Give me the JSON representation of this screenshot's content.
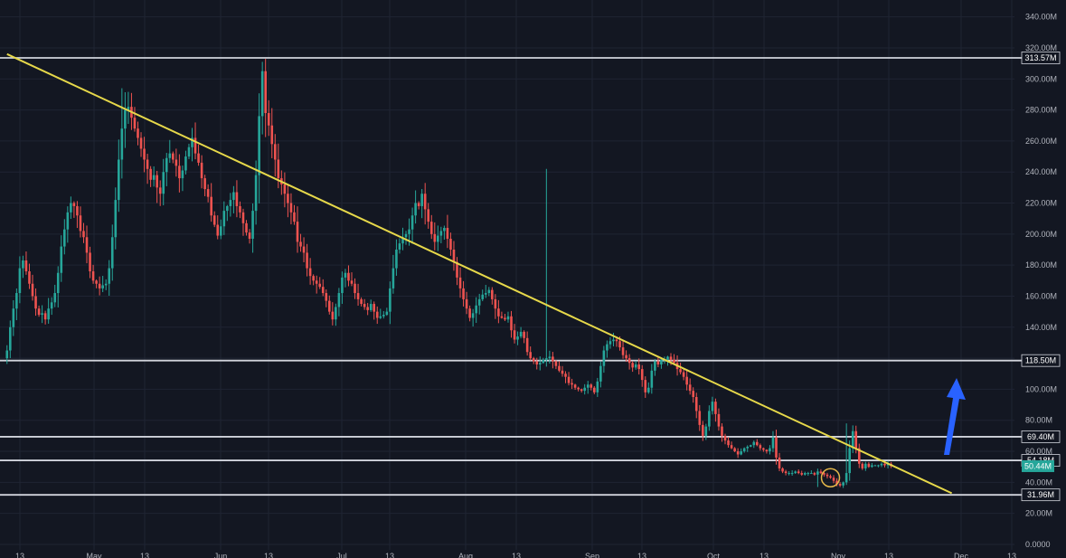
{
  "colors": {
    "background": "#131722",
    "grid": "#1f2433",
    "axis_text": "#b2b5be",
    "up_candle": "#26a69a",
    "down_candle": "#ef5350",
    "level_line": "#d1d4dc",
    "trendline": "#e6d84a",
    "arrow": "#2962ff",
    "circle": "#e6b84a",
    "current_price_bg": "#26a69a"
  },
  "chart_data": {
    "type": "candlestick",
    "title": "",
    "xlabel": "",
    "ylabel": "",
    "ylim": [
      0,
      345
    ],
    "y_ticks": [
      0,
      20,
      40,
      60,
      80,
      100,
      120,
      140,
      160,
      180,
      200,
      220,
      240,
      260,
      280,
      300,
      320,
      340
    ],
    "y_tick_labels": [
      "0.0000",
      "20.00M",
      "40.00M",
      "60.00M",
      "80.00M",
      "100.00M",
      "120.00M",
      "140.00M",
      "160.00M",
      "180.00M",
      "200.00M",
      "220.00M",
      "240.00M",
      "260.00M",
      "280.00M",
      "300.00M",
      "320.00M",
      "340.00M"
    ],
    "x_tick_labels": [
      "13",
      "May",
      "13",
      "Jun",
      "13",
      "Jul",
      "13",
      "Aug",
      "13",
      "Sep",
      "13",
      "Oct",
      "13",
      "Nov",
      "13",
      "Dec",
      "13"
    ],
    "grid": true,
    "horizontal_levels": [
      {
        "value": 313.57,
        "label": "313.57M"
      },
      {
        "value": 118.5,
        "label": "118.50M"
      },
      {
        "value": 69.4,
        "label": "69.40M"
      },
      {
        "value": 54.18,
        "label": "54.18M"
      },
      {
        "value": 31.96,
        "label": "31.96M"
      }
    ],
    "current_price": {
      "value": 50.44,
      "label": "50.44M"
    },
    "trendline": {
      "from_bar": 0,
      "from_value": 316,
      "to_bar": 296,
      "to_value": 33
    },
    "candle_interval": "1D",
    "closes": [
      125,
      140,
      152,
      162,
      178,
      183,
      176,
      168,
      160,
      152,
      148,
      149,
      145,
      152,
      156,
      162,
      175,
      192,
      203,
      214,
      220,
      218,
      212,
      202,
      198,
      188,
      176,
      170,
      168,
      165,
      167,
      168,
      178,
      198,
      222,
      248,
      268,
      280,
      282,
      275,
      268,
      262,
      255,
      248,
      242,
      235,
      238,
      230,
      226,
      240,
      249,
      252,
      248,
      244,
      236,
      241,
      250,
      256,
      262,
      252,
      246,
      236,
      229,
      224,
      212,
      206,
      199,
      205,
      215,
      218,
      222,
      227,
      218,
      214,
      207,
      201,
      197,
      215,
      238,
      276,
      305,
      278,
      270,
      258,
      248,
      236,
      232,
      226,
      220,
      214,
      208,
      195,
      192,
      188,
      178,
      173,
      170,
      168,
      166,
      162,
      157,
      150,
      145,
      153,
      162,
      172,
      175,
      170,
      168,
      162,
      158,
      155,
      153,
      151,
      155,
      150,
      146,
      147,
      148,
      150,
      165,
      178,
      190,
      194,
      198,
      200,
      203,
      212,
      220,
      218,
      226,
      216,
      208,
      200,
      195,
      199,
      202,
      204,
      197,
      190,
      182,
      172,
      165,
      158,
      152,
      146,
      149,
      154,
      158,
      161,
      162,
      164,
      158,
      152,
      147,
      146,
      145,
      147,
      138,
      132,
      134,
      137,
      133,
      124,
      120,
      118,
      116,
      117,
      119,
      120,
      121,
      118,
      115,
      112,
      110,
      108,
      104,
      103,
      101,
      100,
      99,
      101,
      103,
      101,
      98,
      105,
      115,
      125,
      129,
      131,
      132,
      131,
      127,
      122,
      120,
      117,
      114,
      116,
      113,
      106,
      98,
      101,
      112,
      118,
      116,
      119,
      119,
      121,
      119,
      117,
      113,
      111,
      108,
      103,
      99,
      95,
      86,
      77,
      70,
      76,
      86,
      92,
      84,
      76,
      70,
      67,
      64,
      62,
      60,
      58,
      60,
      62,
      63,
      64,
      66,
      64,
      62,
      61,
      60,
      62,
      69,
      56,
      49,
      47,
      46,
      46,
      46,
      47,
      46,
      45,
      46,
      46,
      46,
      45,
      47,
      46,
      45,
      44,
      43,
      41,
      39,
      38,
      40,
      46,
      62,
      73,
      62,
      52,
      49,
      52,
      50,
      51,
      51,
      51,
      52,
      51,
      52,
      50.44
    ],
    "highs": [
      {
        "bar": 36,
        "value": 294
      },
      {
        "bar": 80,
        "value": 311
      },
      {
        "bar": 169,
        "value": 242
      },
      {
        "bar": 263,
        "value": 78
      }
    ],
    "lows": [
      {
        "bar": 254,
        "value": 37
      }
    ],
    "annotations": [
      {
        "type": "arrow",
        "direction": "up"
      },
      {
        "type": "circle",
        "at_bar": 258
      }
    ]
  }
}
